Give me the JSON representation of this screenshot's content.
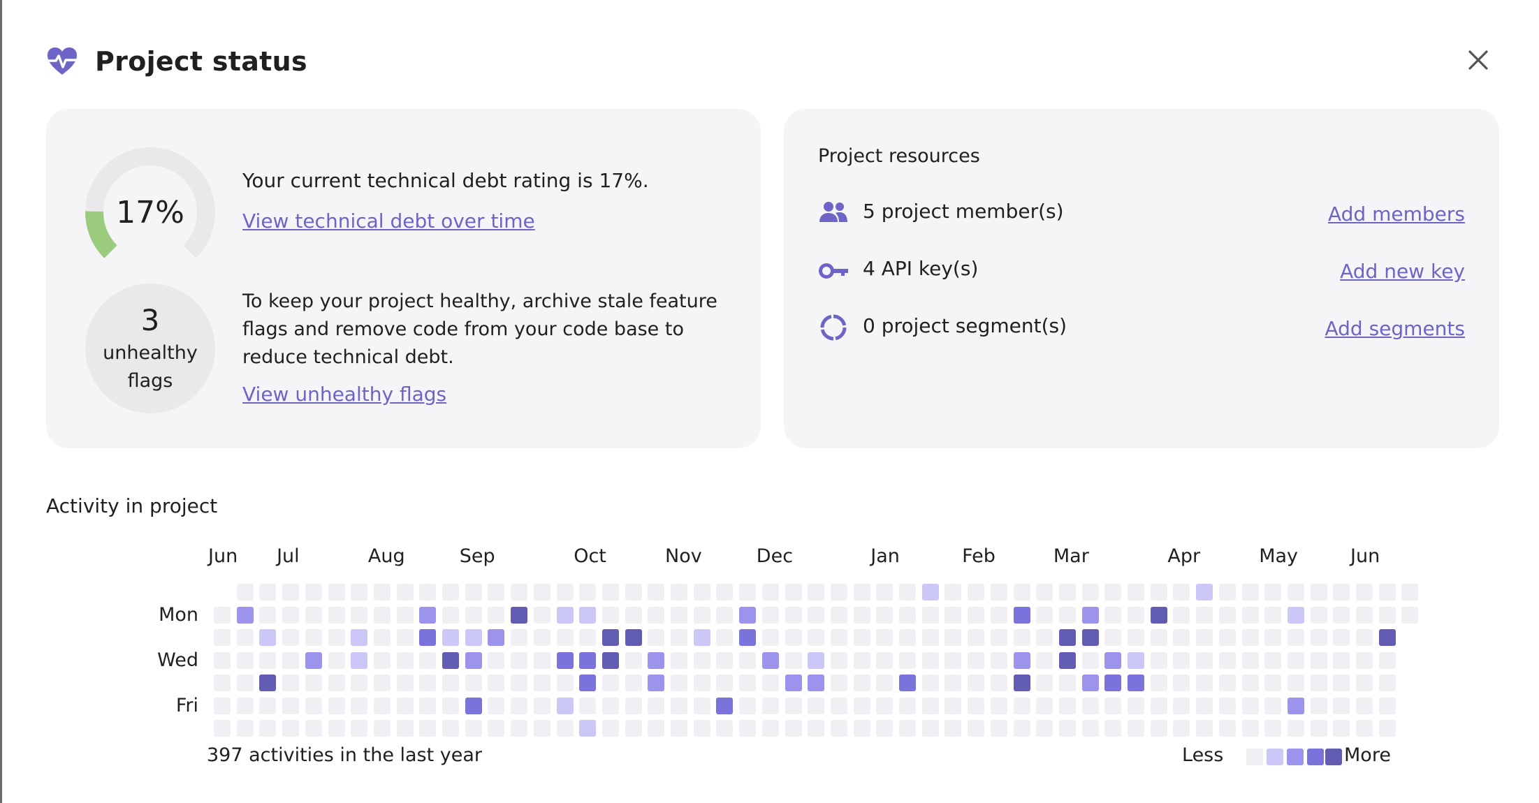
{
  "header": {
    "title": "Project status",
    "icon": "heart-pulse-icon",
    "close_icon": "close-icon"
  },
  "colors": {
    "accent": "#6c65c7",
    "gauge_track": "#e9e9ec",
    "gauge_fill": "#9bcc7e",
    "level0": "#f0f0f4",
    "level1": "#cbc7f7",
    "level2": "#9c94ec",
    "level3": "#7b73dc",
    "level4": "#635cb3"
  },
  "health": {
    "rating_value": "17%",
    "rating_percent": 17,
    "rating_text": "Your current technical debt rating is 17%.",
    "debt_link": "View technical debt over time",
    "unhealthy_count": "3",
    "unhealthy_label_1": "unhealthy",
    "unhealthy_label_2": "flags",
    "advice": "To keep your project healthy, archive stale feature flags and remove code from your code base to reduce technical debt.",
    "flags_link": "View unhealthy flags"
  },
  "resources": {
    "title": "Project resources",
    "items": [
      {
        "icon": "people-icon",
        "text": "5 project member(s)",
        "link": "Add members"
      },
      {
        "icon": "key-icon",
        "text": "4 API key(s)",
        "link": "Add new key"
      },
      {
        "icon": "segments-icon",
        "text": "0 project segment(s)",
        "link": "Add segments"
      }
    ]
  },
  "activity": {
    "title": "Activity in project",
    "months": [
      {
        "label": "Jun",
        "week": 0
      },
      {
        "label": "Jul",
        "week": 3
      },
      {
        "label": "Aug",
        "week": 7
      },
      {
        "label": "Sep",
        "week": 11
      },
      {
        "label": "Oct",
        "week": 16
      },
      {
        "label": "Nov",
        "week": 20
      },
      {
        "label": "Dec",
        "week": 24
      },
      {
        "label": "Jan",
        "week": 29
      },
      {
        "label": "Feb",
        "week": 33
      },
      {
        "label": "Mar",
        "week": 37
      },
      {
        "label": "Apr",
        "week": 42
      },
      {
        "label": "May",
        "week": 46
      },
      {
        "label": "Jun",
        "week": 50
      }
    ],
    "days": [
      {
        "label": "Mon",
        "row": 1
      },
      {
        "label": "Wed",
        "row": 3
      },
      {
        "label": "Fri",
        "row": 5
      }
    ],
    "weeks": 53,
    "first_week_start_row": 1,
    "last_week_end_row": 1,
    "active_cells": [
      [
        31,
        0,
        1
      ],
      [
        43,
        0,
        1
      ],
      [
        1,
        1,
        2
      ],
      [
        9,
        1,
        2
      ],
      [
        13,
        1,
        4
      ],
      [
        15,
        1,
        1
      ],
      [
        16,
        1,
        1
      ],
      [
        23,
        1,
        2
      ],
      [
        35,
        1,
        3
      ],
      [
        38,
        1,
        2
      ],
      [
        41,
        1,
        4
      ],
      [
        47,
        1,
        1
      ],
      [
        2,
        2,
        1
      ],
      [
        6,
        2,
        1
      ],
      [
        9,
        2,
        3
      ],
      [
        10,
        2,
        1
      ],
      [
        11,
        2,
        1
      ],
      [
        12,
        2,
        2
      ],
      [
        17,
        2,
        4
      ],
      [
        18,
        2,
        4
      ],
      [
        21,
        2,
        1
      ],
      [
        23,
        2,
        3
      ],
      [
        37,
        2,
        4
      ],
      [
        38,
        2,
        4
      ],
      [
        51,
        2,
        4
      ],
      [
        4,
        3,
        2
      ],
      [
        6,
        3,
        1
      ],
      [
        10,
        3,
        4
      ],
      [
        11,
        3,
        2
      ],
      [
        15,
        3,
        3
      ],
      [
        16,
        3,
        3
      ],
      [
        17,
        3,
        4
      ],
      [
        19,
        3,
        2
      ],
      [
        24,
        3,
        2
      ],
      [
        26,
        3,
        1
      ],
      [
        35,
        3,
        2
      ],
      [
        37,
        3,
        4
      ],
      [
        39,
        3,
        2
      ],
      [
        40,
        3,
        1
      ],
      [
        2,
        4,
        4
      ],
      [
        16,
        4,
        3
      ],
      [
        19,
        4,
        2
      ],
      [
        25,
        4,
        2
      ],
      [
        26,
        4,
        2
      ],
      [
        30,
        4,
        3
      ],
      [
        35,
        4,
        4
      ],
      [
        38,
        4,
        2
      ],
      [
        39,
        4,
        3
      ],
      [
        40,
        4,
        3
      ],
      [
        11,
        5,
        3
      ],
      [
        15,
        5,
        1
      ],
      [
        22,
        5,
        3
      ],
      [
        47,
        5,
        2
      ],
      [
        16,
        6,
        1
      ]
    ],
    "summary": "397 activities in the last year",
    "legend_less": "Less",
    "legend_more": "More"
  }
}
